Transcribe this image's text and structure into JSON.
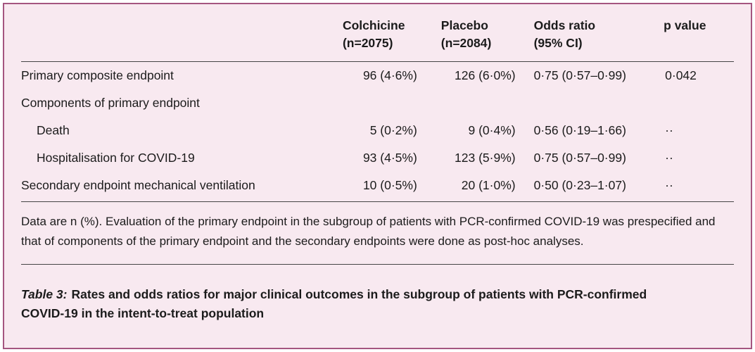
{
  "colors": {
    "panel_background": "#f8e9f0",
    "panel_border": "#a55580",
    "rule": "#454545",
    "text": "#1b1b1b"
  },
  "table": {
    "columns": {
      "label": "",
      "colchicine": "Colchicine\n(n=2075)",
      "placebo": "Placebo\n(n=2084)",
      "odds": "Odds ratio\n(95% CI)",
      "pvalue": "p value"
    },
    "rows": [
      {
        "label": "Primary composite endpoint",
        "colchicine": "96 (4·6%)",
        "placebo": "126 (6·0%)",
        "odds": "0·75 (0·57–0·99)",
        "p": "0·042"
      },
      {
        "label": "Components of primary endpoint",
        "colchicine": "",
        "placebo": "",
        "odds": "",
        "p": ""
      },
      {
        "label": "Death",
        "colchicine": "5 (0·2%)",
        "placebo": "9 (0·4%)",
        "odds": "0·56 (0·19–1·66)",
        "p": "··"
      },
      {
        "label": "Hospitalisation for COVID-19",
        "colchicine": "93 (4·5%)",
        "placebo": "123 (5·9%)",
        "odds": "0·75 (0·57–0·99)",
        "p": "··"
      },
      {
        "label": "Secondary endpoint mechanical ventilation",
        "colchicine": "10 (0·5%)",
        "placebo": "20 (1·0%)",
        "odds": "0·50 (0·23–1·07)",
        "p": "··"
      }
    ],
    "footnote": "Data are n (%). Evaluation of the primary endpoint in the subgroup of patients with PCR-confirmed COVID-19 was prespecified and that of components of the primary endpoint and the secondary endpoints were done as post-hoc analyses.",
    "caption_prefix": "Table 3:",
    "caption_text": "Rates and odds ratios for major clinical outcomes in the subgroup of patients with PCR-confirmed COVID-19 in the intent-to-treat population"
  }
}
